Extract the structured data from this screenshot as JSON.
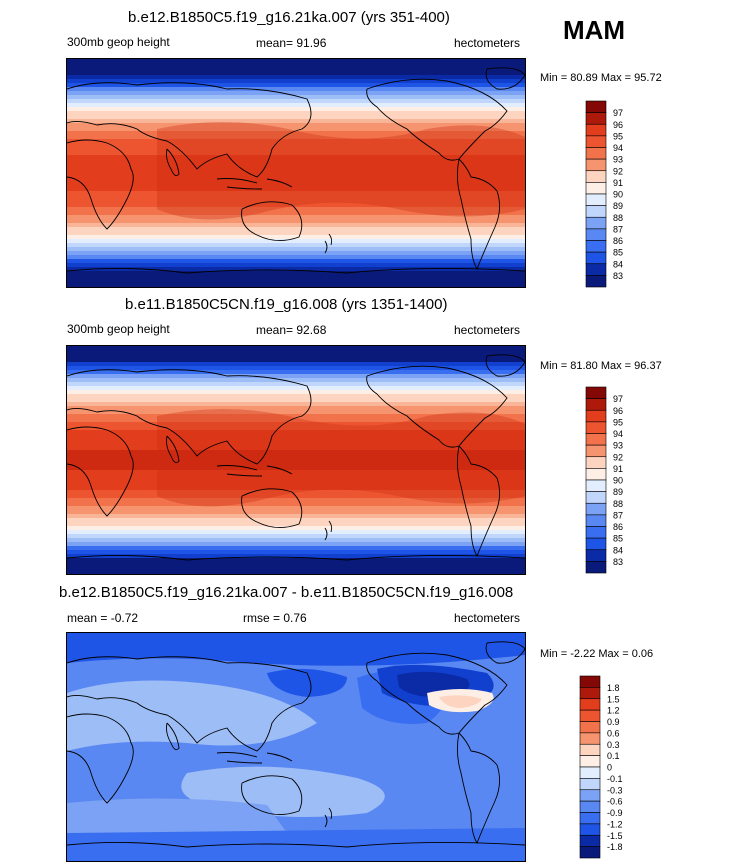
{
  "season_label": "MAM",
  "colors": {
    "diverging_20": [
      "#0a1a7a",
      "#0b2aa5",
      "#1140cf",
      "#1f55e6",
      "#3a6ef0",
      "#5a88f2",
      "#7ba2f4",
      "#9dbdf7",
      "#c0d6fa",
      "#e2edfd",
      "#fdeee6",
      "#fcd4c0",
      "#f9b597",
      "#f6946f",
      "#f2734b",
      "#ec5530",
      "#e23d1c",
      "#ce2a12",
      "#ad1a0c",
      "#840806"
    ],
    "coast": "#000000"
  },
  "chart_data": [
    {
      "type": "heatmap",
      "title": "b.e12.B1850C5.f19_g16.21ka.007 (yrs 351-400)",
      "left_label": "300mb geop height",
      "center_label": "mean=  91.96",
      "units": "hectometers",
      "min_max_text": "Min =  80.89 Max =  95.72",
      "min": 80.89,
      "max": 95.72,
      "mean": 91.96,
      "colorbar_labels": [
        "97",
        "96",
        "95",
        "94",
        "93",
        "92",
        "91",
        "90",
        "89",
        "88",
        "87",
        "86",
        "85",
        "84",
        "83"
      ],
      "colorbar_levels": [
        97,
        96,
        95,
        94,
        93,
        92,
        91,
        90,
        89,
        88,
        87,
        86,
        85,
        84,
        83
      ]
    },
    {
      "type": "heatmap",
      "title": "b.e11.B1850C5CN.f19_g16.008 (yrs 1351-1400)",
      "left_label": "300mb geop height",
      "center_label": "mean=  92.68",
      "units": "hectometers",
      "min_max_text": "Min =  81.80 Max =  96.37",
      "min": 81.8,
      "max": 96.37,
      "mean": 92.68,
      "colorbar_labels": [
        "97",
        "96",
        "95",
        "94",
        "93",
        "92",
        "91",
        "90",
        "89",
        "88",
        "87",
        "86",
        "85",
        "84",
        "83"
      ],
      "colorbar_levels": [
        97,
        96,
        95,
        94,
        93,
        92,
        91,
        90,
        89,
        88,
        87,
        86,
        85,
        84,
        83
      ]
    },
    {
      "type": "heatmap",
      "title": "b.e12.B1850C5.f19_g16.21ka.007 - b.e11.B1850C5CN.f19_g16.008",
      "left_label": "mean =  -0.72",
      "center_label": "rmse =   0.76",
      "units": "hectometers",
      "min_max_text": "Min =  -2.22 Max =   0.06",
      "min": -2.22,
      "max": 0.06,
      "mean": -0.72,
      "rmse": 0.76,
      "colorbar_labels": [
        "1.8",
        "1.5",
        "1.2",
        "0.9",
        "0.6",
        "0.3",
        "0.1",
        "0",
        "-0.1",
        "-0.3",
        "-0.6",
        "-0.9",
        "-1.2",
        "-1.5",
        "-1.8"
      ],
      "colorbar_levels": [
        1.8,
        1.5,
        1.2,
        0.9,
        0.6,
        0.3,
        0.1,
        0,
        -0.1,
        -0.3,
        -0.6,
        -0.9,
        -1.2,
        -1.5,
        -1.8
      ]
    }
  ]
}
